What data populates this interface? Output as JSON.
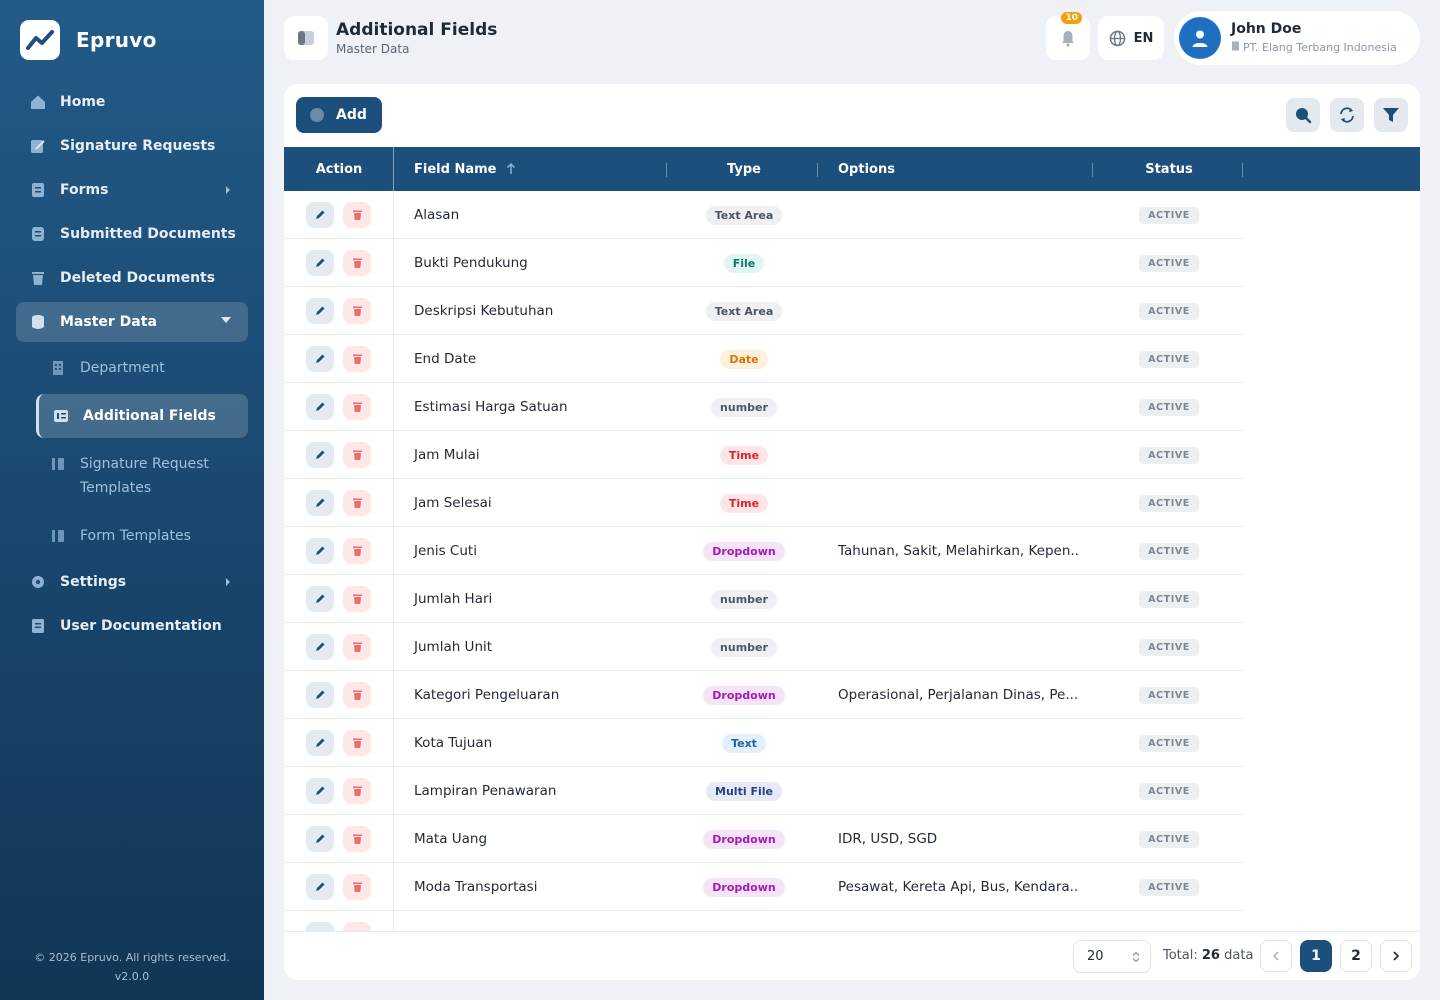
{
  "brand": {
    "name": "Epruvo"
  },
  "sidebar": {
    "items": [
      {
        "label": "Home",
        "icon": "home-icon"
      },
      {
        "label": "Signature Requests",
        "icon": "signature-icon"
      },
      {
        "label": "Forms",
        "icon": "form-icon",
        "caret": "right"
      },
      {
        "label": "Submitted Documents",
        "icon": "document-icon"
      },
      {
        "label": "Deleted Documents",
        "icon": "trash-icon"
      },
      {
        "label": "Master Data",
        "icon": "database-icon",
        "caret": "down",
        "active": true
      },
      {
        "label": "Settings",
        "icon": "gear-icon",
        "caret": "right"
      },
      {
        "label": "User Documentation",
        "icon": "book-icon"
      }
    ],
    "sub_items": [
      {
        "label": "Department",
        "icon": "building-icon"
      },
      {
        "label": "Additional Fields",
        "icon": "fields-icon",
        "active": true
      },
      {
        "label": "Signature Request Templates",
        "icon": "template-icon"
      },
      {
        "label": "Form Templates",
        "icon": "template-icon"
      }
    ],
    "footer": {
      "copyright": "© 2026 Epruvo. All rights reserved.",
      "version": "v2.0.0"
    }
  },
  "header": {
    "title": "Additional Fields",
    "subtitle": "Master Data",
    "notification_count": "10",
    "language": "EN",
    "user": {
      "name": "John Doe",
      "org": "PT. Elang Terbang Indonesia"
    }
  },
  "toolbar": {
    "add_label": "Add"
  },
  "table": {
    "columns": {
      "action": "Action",
      "field_name": "Field Name",
      "type": "Type",
      "options": "Options",
      "status": "Status"
    },
    "rows": [
      {
        "name": "Alasan",
        "type": "Text Area",
        "options": "",
        "status": "ACTIVE"
      },
      {
        "name": "Bukti Pendukung",
        "type": "File",
        "options": "",
        "status": "ACTIVE"
      },
      {
        "name": "Deskripsi Kebutuhan",
        "type": "Text Area",
        "options": "",
        "status": "ACTIVE"
      },
      {
        "name": "End Date",
        "type": "Date",
        "options": "",
        "status": "ACTIVE"
      },
      {
        "name": "Estimasi Harga Satuan",
        "type": "number",
        "options": "",
        "status": "ACTIVE"
      },
      {
        "name": "Jam Mulai",
        "type": "Time",
        "options": "",
        "status": "ACTIVE"
      },
      {
        "name": "Jam Selesai",
        "type": "Time",
        "options": "",
        "status": "ACTIVE"
      },
      {
        "name": "Jenis Cuti",
        "type": "Dropdown",
        "options": "Tahunan, Sakit, Melahirkan, Kepen...",
        "status": "ACTIVE"
      },
      {
        "name": "Jumlah Hari",
        "type": "number",
        "options": "",
        "status": "ACTIVE"
      },
      {
        "name": "Jumlah Unit",
        "type": "number",
        "options": "",
        "status": "ACTIVE"
      },
      {
        "name": "Kategori Pengeluaran",
        "type": "Dropdown",
        "options": "Operasional, Perjalanan Dinas, Pe...",
        "status": "ACTIVE"
      },
      {
        "name": "Kota Tujuan",
        "type": "Text",
        "options": "",
        "status": "ACTIVE"
      },
      {
        "name": "Lampiran Penawaran",
        "type": "Multi File",
        "options": "",
        "status": "ACTIVE"
      },
      {
        "name": "Mata Uang",
        "type": "Dropdown",
        "options": "IDR, USD, SGD",
        "status": "ACTIVE"
      },
      {
        "name": "Moda Transportasi",
        "type": "Dropdown",
        "options": "Pesawat, Kereta Api, Bus, Kendara...",
        "status": "ACTIVE"
      }
    ]
  },
  "type_colors": {
    "Text Area": {
      "bg": "#eef0f3",
      "fg": "#4b5563"
    },
    "File": {
      "bg": "#dff5f1",
      "fg": "#0f766e"
    },
    "Date": {
      "bg": "#fdf0dc",
      "fg": "#d97706"
    },
    "number": {
      "bg": "#eef0f3",
      "fg": "#4b5563"
    },
    "Time": {
      "bg": "#fde4e6",
      "fg": "#dc2626"
    },
    "Dropdown": {
      "bg": "#f6e3f7",
      "fg": "#a21caf"
    },
    "Text": {
      "bg": "#e3effb",
      "fg": "#1d63a8"
    },
    "Multi File": {
      "bg": "#e6eaf7",
      "fg": "#283f8a"
    }
  },
  "pagination": {
    "page_size": "20",
    "total_prefix": "Total:",
    "total_count": "26",
    "total_suffix": "data",
    "pages": [
      "1",
      "2"
    ],
    "current_page": "1"
  }
}
